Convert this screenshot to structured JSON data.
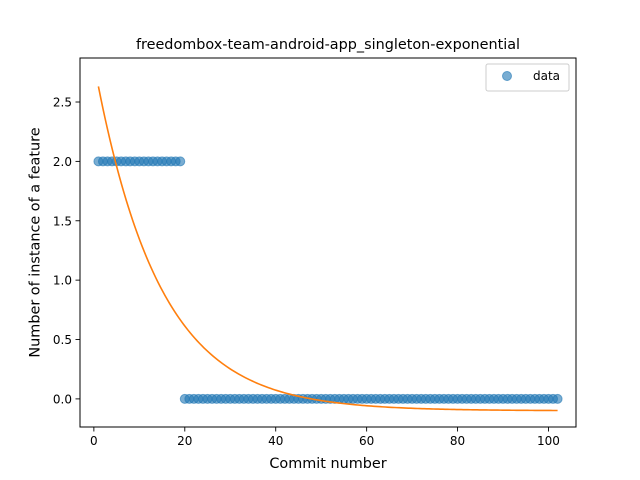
{
  "chart_data": {
    "type": "scatter",
    "title": "freedombox-team-android-app_singleton-exponential",
    "xlabel": "Commit number",
    "ylabel": "Number of instance of a feature",
    "xlim": [
      -3.05,
      106.05
    ],
    "ylim": [
      -0.2367,
      2.8706
    ],
    "x_ticks": [
      0,
      20,
      40,
      60,
      80,
      100
    ],
    "x_tick_labels": [
      "0",
      "20",
      "40",
      "60",
      "80",
      "100"
    ],
    "y_ticks": [
      0.0,
      0.5,
      1.0,
      1.5,
      2.0,
      2.5
    ],
    "y_tick_labels": [
      "0.0",
      "0.5",
      "1.0",
      "1.5",
      "2.0",
      "2.5"
    ],
    "grid": false,
    "legend_position": "upper right",
    "series": [
      {
        "name": "data",
        "kind": "scatter",
        "color": "#1f77b4",
        "alpha": 0.6,
        "segments": [
          {
            "x_start": 1,
            "x_end": 19,
            "y": 2
          },
          {
            "x_start": 20,
            "x_end": 102,
            "y": 0
          }
        ]
      },
      {
        "name": "",
        "kind": "line",
        "color": "#ff7f0e",
        "model": "exponential",
        "a": 2.9307,
        "b": 0.07062,
        "c": -0.1,
        "x_range": [
          1,
          102
        ]
      }
    ]
  }
}
